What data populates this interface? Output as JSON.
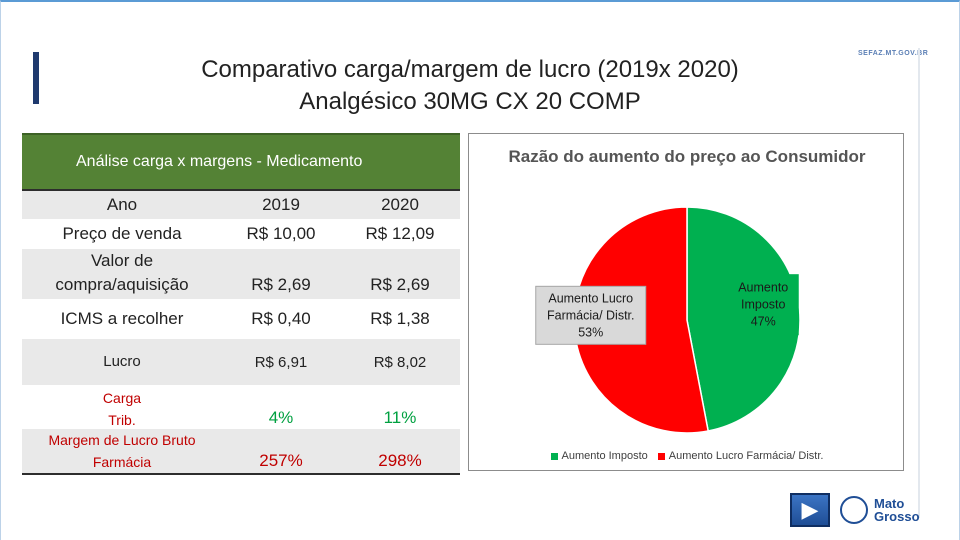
{
  "slide": {
    "title_line1": "Comparativo carga/margem de lucro (2019x 2020)",
    "title_line2": "Analgésico 30MG CX 20 COMP",
    "site_label": "SEFAZ.MT.GOV.BR"
  },
  "table": {
    "header": "Análise carga x margens - Medicamento",
    "columns": [
      "Ano",
      "2019",
      "2020"
    ],
    "rows": [
      {
        "label": "Preço de venda",
        "v2019": "R$ 10,00",
        "v2020": "R$ 12,09"
      },
      {
        "label_line1": "Valor de",
        "label_line2": "compra/aquisição",
        "v2019": "R$ 2,69",
        "v2020": "R$ 2,69"
      },
      {
        "label": "ICMS a recolher",
        "v2019": "R$ 0,40",
        "v2020": "R$ 1,38"
      },
      {
        "label": "Lucro",
        "v2019": "R$ 6,91",
        "v2020": "R$ 8,02"
      },
      {
        "label_line1": "Carga",
        "label_line2": "Trib.",
        "v2019": "4%",
        "v2020": "11%"
      },
      {
        "label_line1": "Margem de Lucro Bruto",
        "label_line2": "Farmácia",
        "v2019": "257%",
        "v2020": "298%"
      }
    ]
  },
  "chart_data": {
    "type": "pie",
    "title": "Razão do aumento do preço ao Consumidor",
    "categories": [
      "Aumento Imposto",
      "Aumento Lucro Farmácia/ Distr."
    ],
    "values": [
      47,
      53
    ],
    "labels": [
      "Aumento Imposto 47%",
      "Aumento Lucro Farmácia/ Distr. 53%"
    ],
    "colors": [
      "#00b050",
      "#ff0000"
    ],
    "legend_position": "bottom"
  },
  "footer": {
    "logo_text_line1": "Mato",
    "logo_text_line2": "Grosso",
    "next_icon": "next-arrow-icon"
  }
}
